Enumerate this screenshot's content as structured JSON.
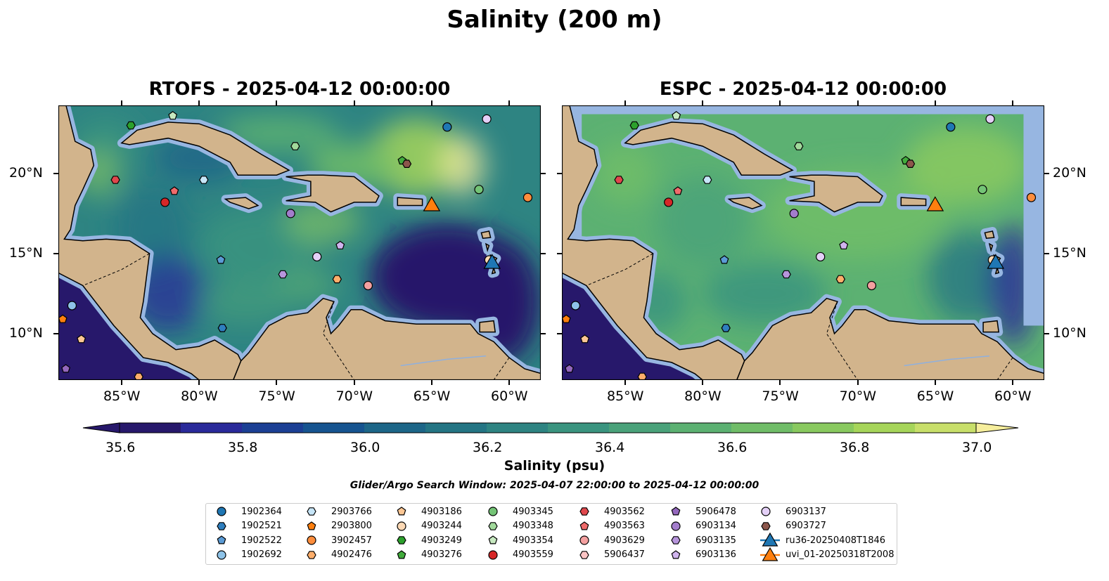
{
  "title": "Salinity (200 m)",
  "panels": [
    {
      "title": "RTOFS - 2025-04-12 00:00:00",
      "model": "rtofs"
    },
    {
      "title": "ESPC - 2025-04-12 00:00:00",
      "model": "espc"
    }
  ],
  "map_extent": {
    "lon": [
      -89.08,
      -57.96
    ],
    "lat": [
      7.1,
      24.25
    ]
  },
  "lon_ticks": [
    {
      "v": -85,
      "label": "85°W"
    },
    {
      "v": -80,
      "label": "80°W"
    },
    {
      "v": -75,
      "label": "75°W"
    },
    {
      "v": -70,
      "label": "70°W"
    },
    {
      "v": -65,
      "label": "65°W"
    },
    {
      "v": -60,
      "label": "60°W"
    }
  ],
  "lat_ticks": [
    {
      "v": 10,
      "label": "10°N"
    },
    {
      "v": 15,
      "label": "15°N"
    },
    {
      "v": 20,
      "label": "20°N"
    }
  ],
  "colorbar": {
    "label": "Salinity (psu)",
    "min": 35.6,
    "max": 37.0,
    "step": 0.1,
    "colors": [
      "#27186b",
      "#2a2a9a",
      "#1b3f94",
      "#165490",
      "#1d6688",
      "#247584",
      "#2e8482",
      "#3a947f",
      "#4aa27a",
      "#5cb172",
      "#70bd68",
      "#89c95f",
      "#a6d55a",
      "#c8df6a"
    ],
    "under": "#27186b",
    "over": "#f6ee9c",
    "ticks": [
      {
        "v": 35.6,
        "label": "35.6"
      },
      {
        "v": 35.8,
        "label": "35.8"
      },
      {
        "v": 36.0,
        "label": "36.0"
      },
      {
        "v": 36.2,
        "label": "36.2"
      },
      {
        "v": 36.4,
        "label": "36.4"
      },
      {
        "v": 36.6,
        "label": "36.6"
      },
      {
        "v": 36.8,
        "label": "36.8"
      },
      {
        "v": 37.0,
        "label": "37.0"
      }
    ]
  },
  "search_window": "Glider/Argo Search Window: 2025-04-07 22:00:00 to 2025-04-12 00:00:00",
  "legend": [
    {
      "id": "1902364",
      "shape": "circle",
      "color": "#1f77b4"
    },
    {
      "id": "1902521",
      "shape": "hexagon",
      "color": "#2f7fbf"
    },
    {
      "id": "1902522",
      "shape": "pentagon",
      "color": "#5b9bd5"
    },
    {
      "id": "1902692",
      "shape": "circle",
      "color": "#8ec3e8"
    },
    {
      "id": "2903766",
      "shape": "hexagon",
      "color": "#c6e5f7"
    },
    {
      "id": "2903800",
      "shape": "pentagon",
      "color": "#ff7f0e"
    },
    {
      "id": "3902457",
      "shape": "circle",
      "color": "#fd8d3c"
    },
    {
      "id": "4902476",
      "shape": "hexagon",
      "color": "#fdae6b"
    },
    {
      "id": "4903186",
      "shape": "pentagon",
      "color": "#fdc794"
    },
    {
      "id": "4903244",
      "shape": "circle",
      "color": "#fdd9b5"
    },
    {
      "id": "4903249",
      "shape": "hexagon",
      "color": "#2ca02c"
    },
    {
      "id": "4903276",
      "shape": "pentagon",
      "color": "#41ab3c"
    },
    {
      "id": "4903345",
      "shape": "circle",
      "color": "#74c476"
    },
    {
      "id": "4903348",
      "shape": "hexagon",
      "color": "#a1d99b"
    },
    {
      "id": "4903354",
      "shape": "pentagon",
      "color": "#c7e9c0"
    },
    {
      "id": "4903559",
      "shape": "circle",
      "color": "#d62728"
    },
    {
      "id": "4903562",
      "shape": "hexagon",
      "color": "#e0474c"
    },
    {
      "id": "4903563",
      "shape": "pentagon",
      "color": "#ef6b6b"
    },
    {
      "id": "4903629",
      "shape": "circle",
      "color": "#f4a0a0"
    },
    {
      "id": "5906437",
      "shape": "hexagon",
      "color": "#fbc4c4"
    },
    {
      "id": "5906478",
      "shape": "pentagon",
      "color": "#9467bd"
    },
    {
      "id": "6903134",
      "shape": "circle",
      "color": "#a37dcc"
    },
    {
      "id": "6903135",
      "shape": "hexagon",
      "color": "#b795dc"
    },
    {
      "id": "6903136",
      "shape": "pentagon",
      "color": "#d0b4ee"
    },
    {
      "id": "6903137",
      "shape": "circle",
      "color": "#e4d0f7"
    },
    {
      "id": "6903727",
      "shape": "hexagon",
      "color": "#8c564b"
    },
    {
      "id": "ru36-20250408T1846",
      "shape": "triangle",
      "color": "#1f77b4"
    },
    {
      "id": "uvi_01-20250318T2008",
      "shape": "triangle",
      "color": "#ff7f0e"
    }
  ],
  "observations": [
    {
      "id": "1902364",
      "lon": -64.0,
      "lat": 22.9
    },
    {
      "id": "6903137",
      "lon": -61.45,
      "lat": 23.4
    },
    {
      "id": "4903249",
      "lon": -84.4,
      "lat": 23.0
    },
    {
      "id": "4903354",
      "lon": -81.7,
      "lat": 23.6
    },
    {
      "id": "4903348",
      "lon": -73.8,
      "lat": 21.7
    },
    {
      "id": "4903276",
      "lon": -66.9,
      "lat": 20.8
    },
    {
      "id": "6903727",
      "lon": -66.6,
      "lat": 20.6
    },
    {
      "id": "4903562",
      "lon": -85.4,
      "lat": 19.6
    },
    {
      "id": "4903563",
      "lon": -81.6,
      "lat": 18.9
    },
    {
      "id": "2903766",
      "lon": -79.7,
      "lat": 19.6
    },
    {
      "id": "4903559",
      "lon": -82.2,
      "lat": 18.2
    },
    {
      "id": "4903345",
      "lon": -61.95,
      "lat": 19.0
    },
    {
      "id": "3902457",
      "lon": -58.8,
      "lat": 18.5
    },
    {
      "id": "6903134",
      "lon": -74.1,
      "lat": 17.5
    },
    {
      "id": "6903136",
      "lon": -70.9,
      "lat": 15.5
    },
    {
      "id": "1902522",
      "lon": -78.6,
      "lat": 14.6
    },
    {
      "id": "6903137",
      "lon": -72.4,
      "lat": 14.8
    },
    {
      "id": "4903244",
      "lon": -61.3,
      "lat": 14.6
    },
    {
      "id": "6903135",
      "lon": -74.6,
      "lat": 13.7
    },
    {
      "id": "4902476",
      "lon": -71.1,
      "lat": 13.4
    },
    {
      "id": "4903629",
      "lon": -69.1,
      "lat": 13.0
    },
    {
      "id": "1902521",
      "lon": -78.5,
      "lat": 10.35
    },
    {
      "id": "1902692",
      "lon": -88.2,
      "lat": 11.75
    },
    {
      "id": "2903800",
      "lon": -88.8,
      "lat": 10.9
    },
    {
      "id": "4903186",
      "lon": -87.6,
      "lat": 9.65
    },
    {
      "id": "5906478",
      "lon": -88.6,
      "lat": 7.8
    },
    {
      "id": "4902476",
      "lon": -83.9,
      "lat": 7.3
    },
    {
      "id": "uvi_01-20250318T2008",
      "lon": -65.0,
      "lat": 18.1
    },
    {
      "id": "ru36-20250408T1846",
      "lon": -61.1,
      "lat": 14.5
    }
  ]
}
